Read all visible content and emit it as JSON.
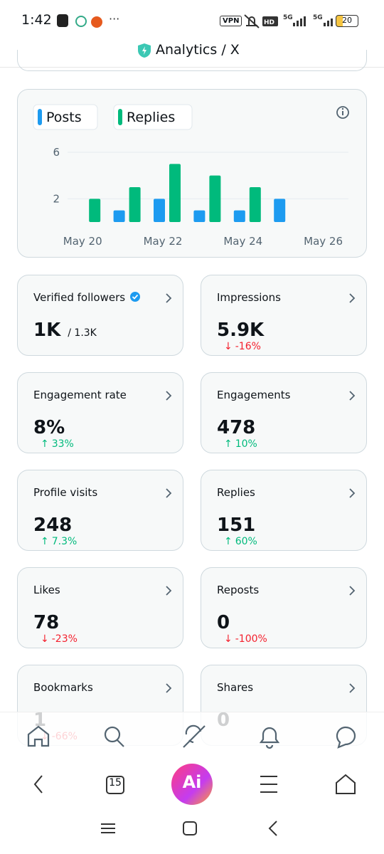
{
  "status_bar": {
    "time": "1:42",
    "vpn": "VPN",
    "battery": "20"
  },
  "header": {
    "title": "Analytics / X"
  },
  "chart_data": {
    "type": "bar",
    "categories": [
      "May 20",
      null,
      "May 22",
      null,
      "May 24",
      null,
      "May 26"
    ],
    "series": [
      {
        "name": "Posts",
        "color": "#1d9bf0",
        "values": [
          0,
          1,
          2,
          1,
          1,
          2,
          0
        ]
      },
      {
        "name": "Replies",
        "color": "#00ba7c",
        "values": [
          2,
          3,
          5,
          4,
          3,
          0,
          0
        ]
      }
    ],
    "ylim": [
      0,
      6
    ],
    "yticks": [
      2,
      6
    ],
    "grid": true
  },
  "cards": [
    {
      "label": "Verified followers",
      "value": "1K",
      "secondary": "/ 1.3K",
      "verified": true
    },
    {
      "label": "Impressions",
      "value": "5.9K",
      "change": "-16%"
    },
    {
      "label": "Engagement rate",
      "value": "8%",
      "change": "33%"
    },
    {
      "label": "Engagements",
      "value": "478",
      "change": "10%"
    },
    {
      "label": "Profile visits",
      "value": "248",
      "change": "7.3%"
    },
    {
      "label": "Replies",
      "value": "151",
      "change": "60%"
    },
    {
      "label": "Likes",
      "value": "78",
      "change": "-23%"
    },
    {
      "label": "Reposts",
      "value": "0",
      "change": "-100%"
    },
    {
      "label": "Bookmarks",
      "value": "1",
      "change": "-66%"
    },
    {
      "label": "Shares",
      "value": "0"
    }
  ],
  "browser_bar": {
    "tabs": "15",
    "ai": "Ai"
  }
}
